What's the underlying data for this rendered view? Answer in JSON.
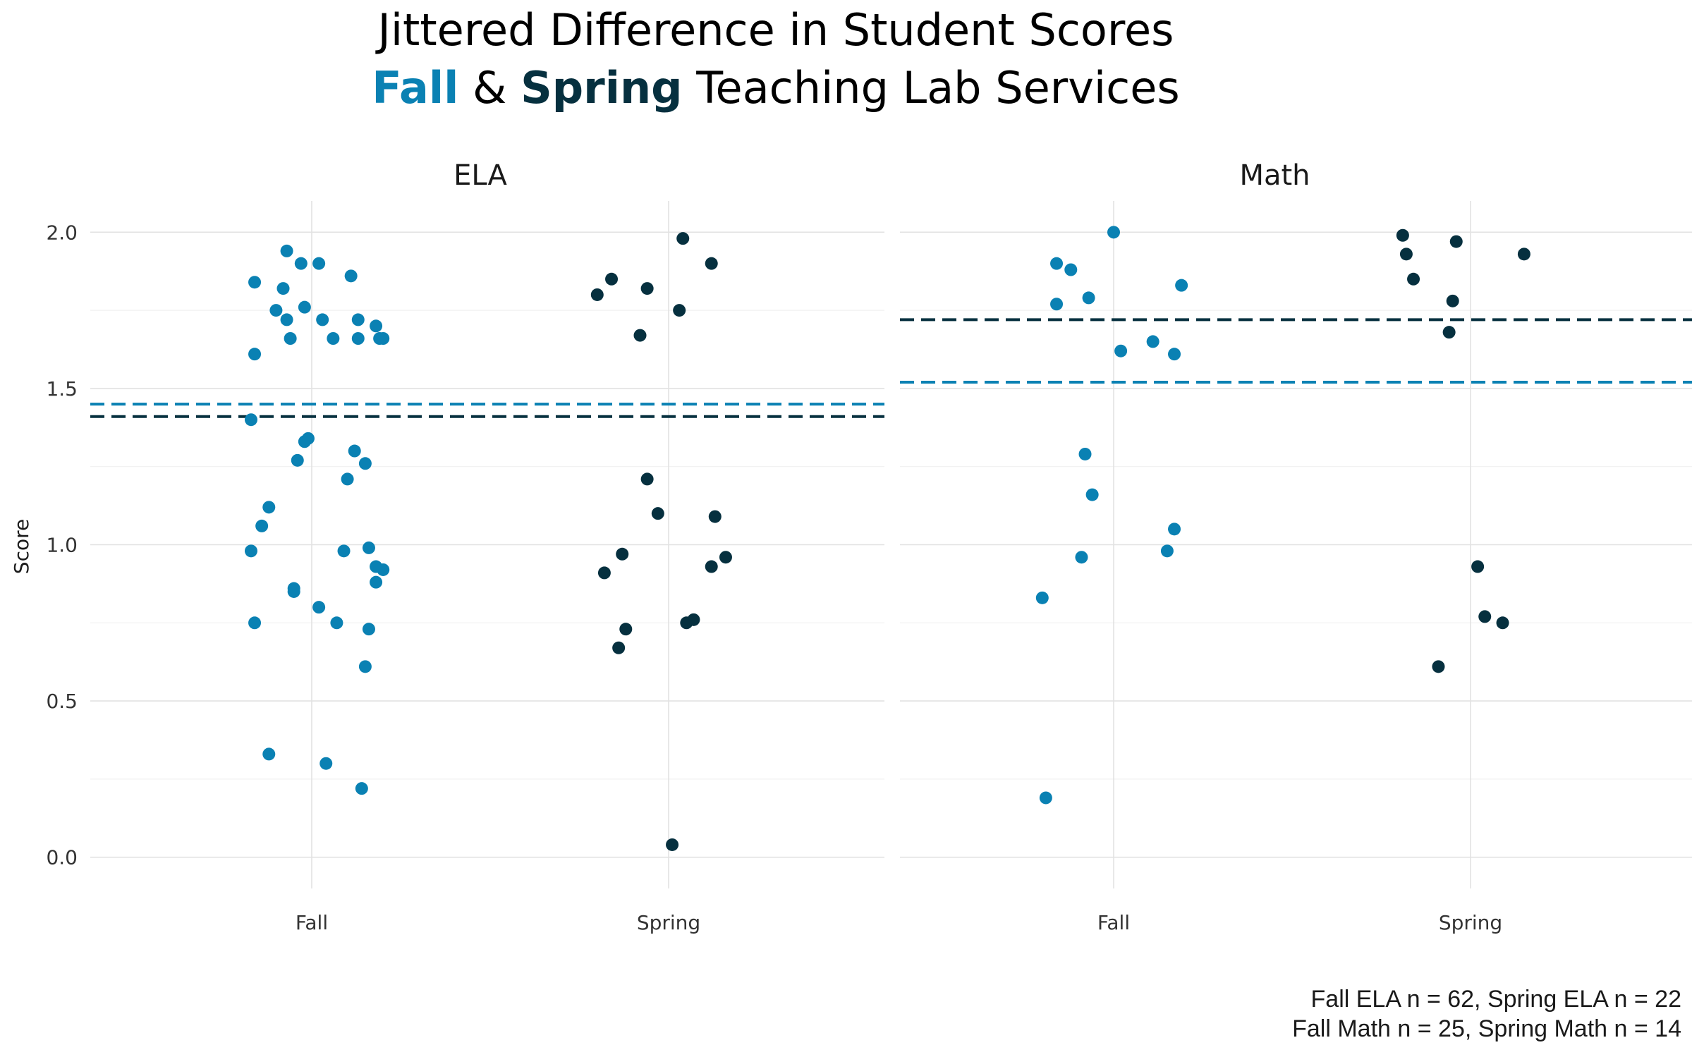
{
  "colors": {
    "fall": "#0a81b3",
    "spring": "#06303f",
    "text": "#000000"
  },
  "chart_data": {
    "type": "scatter",
    "title_line1": "Jittered Difference in Student Scores",
    "title_line2": {
      "fall": "Fall",
      "amp": " & ",
      "spring": "Spring",
      "rest": " Teaching Lab Services"
    },
    "ylabel": "Score",
    "ylim": [
      -0.1,
      2.1
    ],
    "yticks": [
      "0.0",
      "0.5",
      "1.0",
      "1.5",
      "2.0"
    ],
    "categories": [
      "Fall",
      "Spring"
    ],
    "caption": [
      "Fall ELA n = 62, Spring ELA n = 22",
      "Fall Math n = 25, Spring Math n = 14"
    ],
    "panels": [
      {
        "name": "ELA",
        "means": {
          "Fall": 1.45,
          "Spring": 1.41
        },
        "series": [
          {
            "name": "Fall",
            "points": [
              [
                -0.16,
                1.84
              ],
              [
                -0.07,
                1.94
              ],
              [
                -0.03,
                1.9
              ],
              [
                0.02,
                1.9
              ],
              [
                0.11,
                1.86
              ],
              [
                -0.08,
                1.82
              ],
              [
                -0.02,
                1.76
              ],
              [
                -0.1,
                1.75
              ],
              [
                -0.07,
                1.72
              ],
              [
                0.03,
                1.72
              ],
              [
                0.13,
                1.72
              ],
              [
                0.18,
                1.7
              ],
              [
                -0.06,
                1.66
              ],
              [
                0.06,
                1.66
              ],
              [
                0.13,
                1.66
              ],
              [
                0.19,
                1.66
              ],
              [
                0.2,
                1.66
              ],
              [
                -0.16,
                1.61
              ],
              [
                -0.17,
                1.4
              ],
              [
                -0.01,
                1.34
              ],
              [
                -0.02,
                1.33
              ],
              [
                0.12,
                1.3
              ],
              [
                -0.04,
                1.27
              ],
              [
                0.15,
                1.26
              ],
              [
                0.1,
                1.21
              ],
              [
                -0.12,
                1.12
              ],
              [
                -0.14,
                1.06
              ],
              [
                0.16,
                0.99
              ],
              [
                -0.17,
                0.98
              ],
              [
                0.09,
                0.98
              ],
              [
                0.18,
                0.93
              ],
              [
                0.2,
                0.92
              ],
              [
                0.18,
                0.88
              ],
              [
                -0.05,
                0.86
              ],
              [
                -0.05,
                0.85
              ],
              [
                0.02,
                0.8
              ],
              [
                -0.16,
                0.75
              ],
              [
                0.07,
                0.75
              ],
              [
                0.16,
                0.73
              ],
              [
                0.15,
                0.61
              ],
              [
                -0.12,
                0.33
              ],
              [
                0.04,
                0.3
              ],
              [
                0.14,
                0.22
              ]
            ]
          },
          {
            "name": "Spring",
            "points": [
              [
                0.04,
                1.98
              ],
              [
                0.12,
                1.9
              ],
              [
                -0.16,
                1.85
              ],
              [
                -0.06,
                1.82
              ],
              [
                -0.2,
                1.8
              ],
              [
                0.03,
                1.75
              ],
              [
                -0.08,
                1.67
              ],
              [
                -0.06,
                1.21
              ],
              [
                -0.03,
                1.1
              ],
              [
                0.13,
                1.09
              ],
              [
                -0.13,
                0.97
              ],
              [
                0.16,
                0.96
              ],
              [
                0.12,
                0.93
              ],
              [
                -0.18,
                0.91
              ],
              [
                0.07,
                0.76
              ],
              [
                0.05,
                0.75
              ],
              [
                -0.12,
                0.73
              ],
              [
                -0.14,
                0.67
              ],
              [
                0.01,
                0.04
              ]
            ]
          }
        ]
      },
      {
        "name": "Math",
        "means": {
          "Fall": 1.52,
          "Spring": 1.72
        },
        "series": [
          {
            "name": "Fall",
            "points": [
              [
                0.0,
                2.0
              ],
              [
                -0.16,
                1.9
              ],
              [
                -0.12,
                1.88
              ],
              [
                0.19,
                1.83
              ],
              [
                -0.07,
                1.79
              ],
              [
                -0.16,
                1.77
              ],
              [
                0.11,
                1.65
              ],
              [
                0.02,
                1.62
              ],
              [
                0.17,
                1.61
              ],
              [
                -0.08,
                1.29
              ],
              [
                -0.06,
                1.16
              ],
              [
                0.17,
                1.05
              ],
              [
                0.15,
                0.98
              ],
              [
                -0.09,
                0.96
              ],
              [
                -0.2,
                0.83
              ],
              [
                -0.19,
                0.19
              ]
            ]
          },
          {
            "name": "Spring",
            "points": [
              [
                -0.19,
                1.99
              ],
              [
                -0.04,
                1.97
              ],
              [
                -0.18,
                1.93
              ],
              [
                0.15,
                1.93
              ],
              [
                -0.16,
                1.85
              ],
              [
                -0.05,
                1.78
              ],
              [
                -0.06,
                1.68
              ],
              [
                0.02,
                0.93
              ],
              [
                0.04,
                0.77
              ],
              [
                0.09,
                0.75
              ],
              [
                -0.09,
                0.61
              ]
            ]
          }
        ]
      }
    ]
  }
}
